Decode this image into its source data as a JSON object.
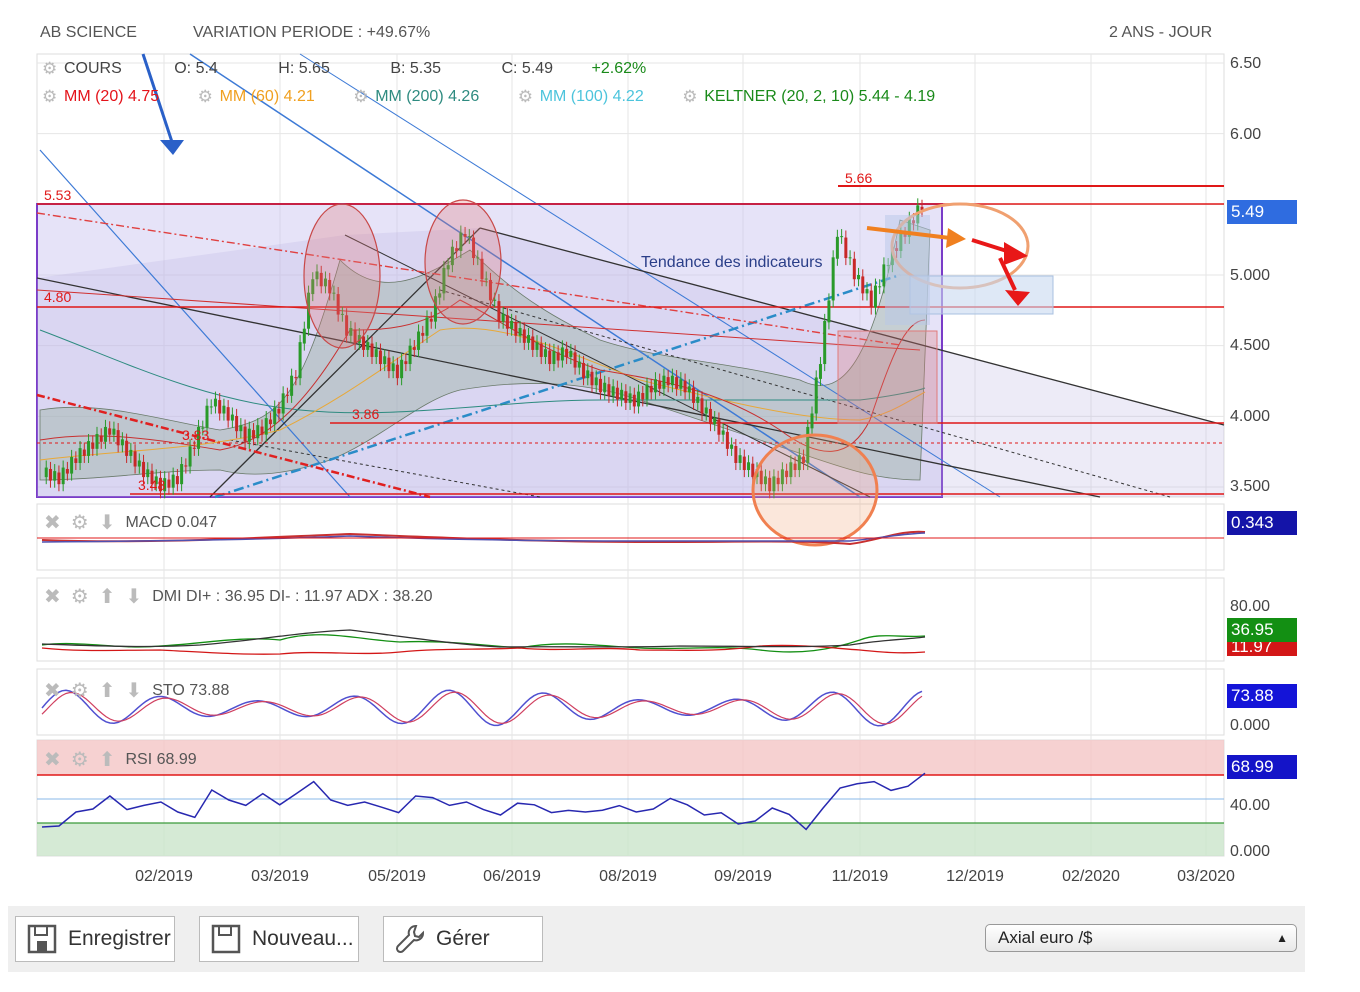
{
  "header": {
    "name": "AB SCIENCE",
    "variation": "VARIATION PERIODE : +49.67%",
    "period": "2 ANS - JOUR"
  },
  "legend": {
    "cours": "COURS",
    "open": "O: 5.4",
    "high": "H: 5.65",
    "low": "B: 5.35",
    "close": "C: 5.49",
    "change": "+2.62%",
    "mm20": "MM (20)  4.75",
    "mm60": "MM (60)  4.21",
    "mm200": "MM (200)  4.26",
    "mm100": "MM (100)  4.22",
    "keltner": "KELTNER (20, 2, 10)  5.44 - 4.19"
  },
  "colors": {
    "mm20": "#e4131a",
    "mm60": "#f0a020",
    "mm200": "#2e8b80",
    "mm100": "#4cc4dc",
    "keltner": "#1a8a1a",
    "change": "#1a8a1a",
    "price_box": "#2f6ce0",
    "macd_box": "#1414a8",
    "di_plus": "#138f13",
    "di_minus": "#d31717",
    "sto_box": "#1414d8",
    "rsi_box": "#1414c8"
  },
  "chart_data": {
    "type": "line",
    "title": "",
    "x_ticks": [
      "02/2019",
      "03/2019",
      "05/2019",
      "06/2019",
      "08/2019",
      "09/2019",
      "11/2019",
      "12/2019",
      "02/2020",
      "03/2020"
    ],
    "price_axis": {
      "ticks": [
        "6.50",
        "6.00",
        "5.000",
        "4.500",
        "4.000",
        "3.500"
      ],
      "ylim": [
        3.45,
        6.55
      ]
    },
    "last_price": "5.49",
    "levels": [
      {
        "label": "5.66",
        "value": 5.66
      },
      {
        "label": "5.53",
        "value": 5.53
      },
      {
        "label": "4.80",
        "value": 4.8
      },
      {
        "label": "3.86",
        "value": 3.86
      },
      {
        "label": "3.83",
        "value": 3.83
      },
      {
        "label": "3.48",
        "value": 3.48
      }
    ],
    "annotation": "Tendance des indicateurs",
    "series": [
      {
        "name": "COURS",
        "values": [
          3.6,
          3.55,
          3.7,
          3.8,
          3.9,
          3.75,
          3.6,
          3.5,
          3.55,
          3.8,
          4.1,
          4.0,
          3.85,
          3.9,
          4.05,
          4.3,
          5.0,
          4.9,
          4.6,
          4.5,
          4.4,
          4.3,
          4.5,
          4.7,
          5.1,
          5.3,
          5.0,
          4.7,
          4.6,
          4.5,
          4.4,
          4.45,
          4.3,
          4.2,
          4.15,
          4.1,
          4.2,
          4.25,
          4.2,
          4.05,
          3.9,
          3.7,
          3.6,
          3.5,
          3.6,
          3.7,
          4.4,
          5.3,
          5.0,
          4.8,
          5.1,
          5.3,
          5.49
        ]
      }
    ],
    "panels": [
      {
        "name": "MACD",
        "value": "0.047",
        "box": "0.343",
        "ticks": []
      },
      {
        "name": "DMI",
        "value": "DI+ : 36.95 DI- : 11.97 ADX : 38.20",
        "box_plus": "36.95",
        "box_minus": "11.97",
        "ticks": [
          "80.00"
        ]
      },
      {
        "name": "STO",
        "value": "73.88",
        "box": "73.88",
        "ticks": [
          "0.000"
        ]
      },
      {
        "name": "RSI",
        "value": "68.99",
        "box": "68.99",
        "ticks": [
          "40.00",
          "0.000"
        ],
        "values": [
          30,
          25,
          40,
          45,
          50,
          42,
          48,
          45,
          40,
          38,
          55,
          50,
          48,
          52,
          46,
          58,
          62,
          50,
          48,
          45,
          44,
          42,
          50,
          52,
          48,
          45,
          42,
          40,
          44,
          46,
          42,
          38,
          40,
          44,
          42,
          40,
          45,
          48,
          46,
          40,
          36,
          30,
          35,
          40,
          38,
          28,
          40,
          60,
          66,
          62,
          58,
          64,
          68.99
        ]
      }
    ]
  },
  "toolbar": {
    "save": "Enregistrer",
    "new": "Nouveau...",
    "manage": "Gérer",
    "axis_select": "Axial euro /$"
  }
}
